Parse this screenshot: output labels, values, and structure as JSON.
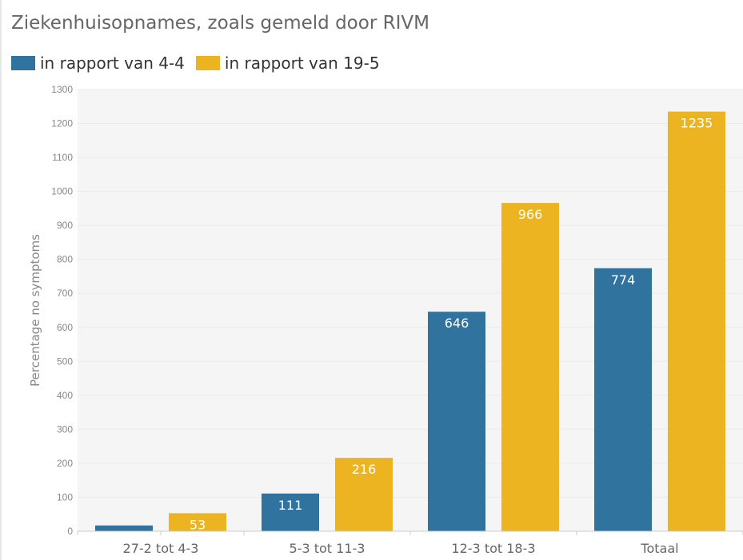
{
  "chart_data": {
    "type": "bar",
    "title": "Ziekenhuisopnames, zoals gemeld door RIVM",
    "xlabel": "",
    "ylabel": "Percentage no symptoms",
    "ylim": [
      0,
      1300
    ],
    "yticks": [
      0,
      100,
      200,
      300,
      400,
      500,
      600,
      700,
      800,
      900,
      1000,
      1100,
      1200,
      1300
    ],
    "categories": [
      "27-2 tot 4-3",
      "5-3 tot 11-3",
      "12-3 tot 18-3",
      "Totaal"
    ],
    "series": [
      {
        "name": "in rapport van 4-4",
        "color": "#31739f",
        "values": [
          17,
          111,
          646,
          774
        ]
      },
      {
        "name": "in rapport van 19-5",
        "color": "#edb421",
        "values": [
          53,
          216,
          966,
          1235
        ]
      }
    ],
    "grid": true,
    "legend_position": "top-left"
  }
}
